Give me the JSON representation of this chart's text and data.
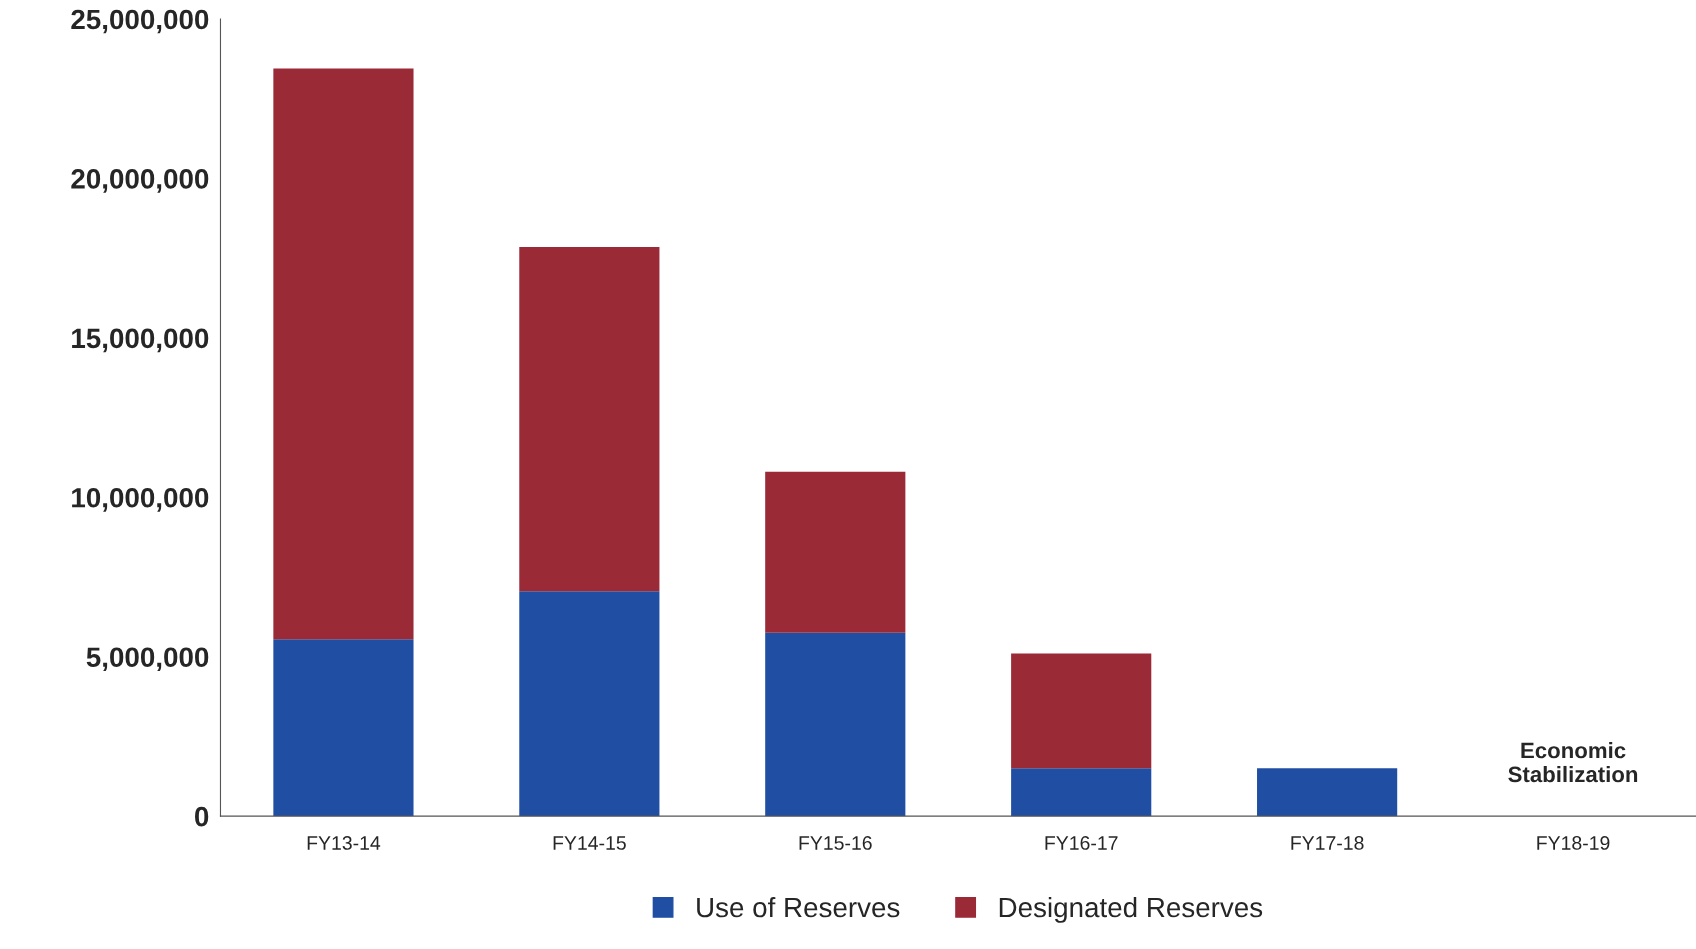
{
  "chart_data": {
    "type": "bar",
    "stacked": true,
    "categories": [
      "FY13-14",
      "FY14-15",
      "FY15-16",
      "FY16-17",
      "FY17-18",
      "FY18-19"
    ],
    "series": [
      {
        "name": "Use of Reserves",
        "color": "#1f4ea3",
        "values": [
          5550000,
          7050000,
          5750000,
          1500000,
          1500000,
          0
        ]
      },
      {
        "name": "Designated Reserves",
        "color": "#9a2a36",
        "values": [
          17900000,
          10800000,
          5050000,
          3600000,
          0,
          0
        ]
      }
    ],
    "ylim": [
      0,
      25000000
    ],
    "yticks": [
      {
        "value": 0,
        "label": "0"
      },
      {
        "value": 5000000,
        "label": "5,000,000"
      },
      {
        "value": 10000000,
        "label": "10,000,000"
      },
      {
        "value": 15000000,
        "label": "15,000,000"
      },
      {
        "value": 20000000,
        "label": "20,000,000"
      },
      {
        "value": 25000000,
        "label": "25,000,000"
      }
    ],
    "annotations": [
      "Economic\nStabilization"
    ],
    "grid": false,
    "legend": "bottom"
  }
}
